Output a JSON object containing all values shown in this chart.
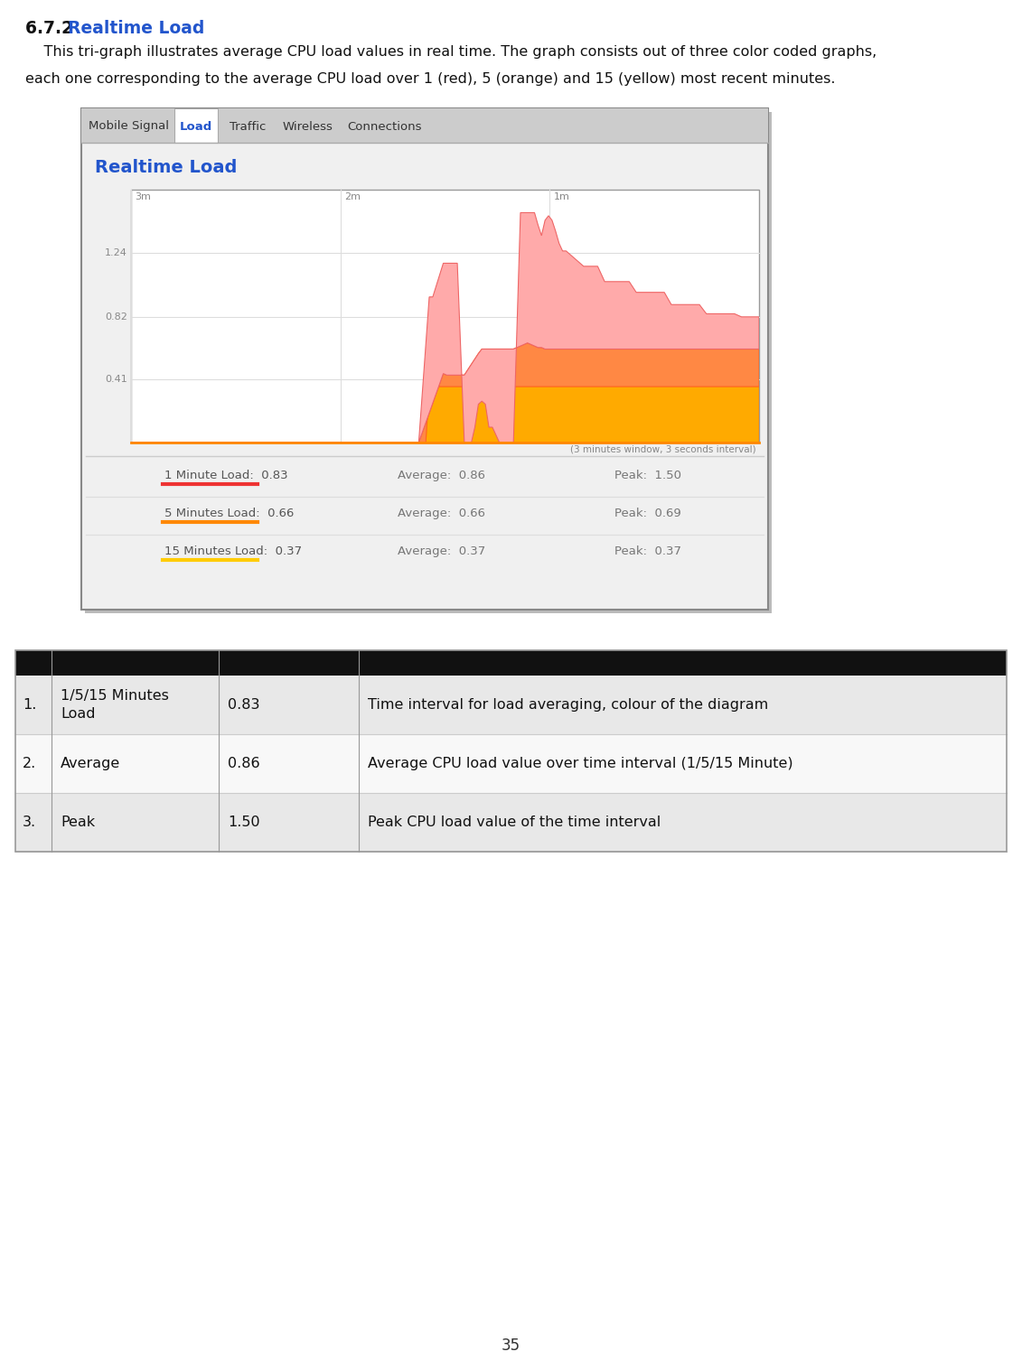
{
  "title": "6.7.2  Realtime Load",
  "title_color": "#2255cc",
  "body_line1": "    This tri-graph illustrates average CPU load values in real time. The graph consists out of three color coded graphs,",
  "body_line2": "each one corresponding to the average CPU load over 1 (red), 5 (orange) and 15 (yellow) most recent minutes.",
  "section_title": "Realtime Load",
  "section_title_color": "#2255cc",
  "tabs": [
    "Mobile Signal",
    "Load",
    "Traffic",
    "Wireless",
    "Connections"
  ],
  "active_tab": "Load",
  "active_tab_color": "#2255cc",
  "graph_note": "(3 minutes window, 3 seconds interval)",
  "yticks": [
    0.41,
    0.82,
    1.24
  ],
  "xtick_labels": [
    "3m",
    "2m",
    "1m"
  ],
  "legend_rows": [
    {
      "label": "1 Minute Load:  0.83",
      "avg": "Average:  0.86",
      "peak": "Peak:  1.50",
      "color": "#ee3333"
    },
    {
      "label": "5 Minutes Load:  0.66",
      "avg": "Average:  0.66",
      "peak": "Peak:  0.69",
      "color": "#ff8800"
    },
    {
      "label": "15 Minutes Load:  0.37",
      "avg": "Average:  0.37",
      "peak": "Peak:  0.37",
      "color": "#ffcc00"
    }
  ],
  "table_rows": [
    {
      "num": "1.",
      "field": "1/5/15 Minutes\nLoad",
      "sample": "0.83",
      "explanation": "Time interval for load averaging, colour of the diagram"
    },
    {
      "num": "2.",
      "field": "Average",
      "sample": "0.86",
      "explanation": "Average CPU load value over time interval (1/5/15 Minute)"
    },
    {
      "num": "3.",
      "field": "Peak",
      "sample": "1.50",
      "explanation": "Peak CPU load value of the time interval"
    }
  ],
  "page_number": "35",
  "bg_color": "#ffffff",
  "panel_border_color": "#aaaaaa",
  "tab_bar_bg": "#cccccc",
  "graph_bg": "#ffffff",
  "table_header_bg": "#111111"
}
